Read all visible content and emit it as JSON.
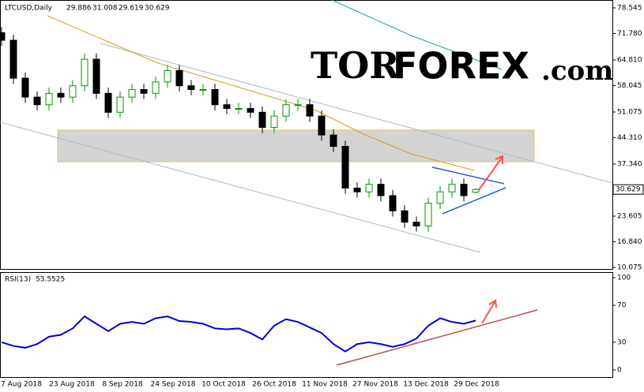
{
  "chart_data": [
    {
      "type": "candlestick",
      "symbol": "LTCUSD,Daily",
      "logo": {
        "left": "TOR",
        "middle": "FOREX",
        "right": ".com"
      },
      "up_color": "#009900",
      "down_color": "#000000",
      "open": [
        72,
        70,
        60,
        55,
        53,
        56,
        55,
        58,
        65,
        56,
        51,
        55,
        57,
        56,
        59,
        62,
        58,
        57,
        57,
        53,
        52,
        52,
        51,
        47,
        50,
        53,
        53,
        50,
        45,
        42,
        31,
        30,
        32,
        29,
        25,
        22,
        21,
        27,
        30,
        32,
        29.886
      ],
      "high": [
        73.5,
        71.5,
        61.5,
        56.5,
        57.5,
        57.5,
        59.5,
        66.5,
        66.5,
        57.5,
        56.5,
        58.5,
        58.5,
        60.5,
        63.5,
        63.5,
        59.5,
        58.5,
        58.5,
        54.5,
        53.5,
        53.5,
        52.5,
        51.5,
        54.5,
        54.5,
        54.5,
        51.5,
        46.5,
        43.5,
        32.5,
        33.5,
        33.5,
        30.5,
        26.5,
        23.5,
        28.5,
        31.5,
        33.5,
        33.5,
        31.008
      ],
      "low": [
        68.5,
        58.5,
        53.5,
        51.5,
        51.5,
        53.5,
        53.5,
        56.5,
        54.5,
        49.5,
        49.5,
        53.5,
        54.5,
        54.5,
        57.5,
        56.5,
        55.5,
        55.5,
        51.5,
        50.5,
        50.5,
        49.5,
        45.5,
        45.5,
        48.5,
        51.5,
        48.5,
        43.5,
        40.5,
        29.5,
        28.5,
        28.5,
        27.5,
        23.5,
        20.5,
        19.5,
        19.5,
        25.5,
        28.5,
        27.5,
        29.619
      ],
      "close": [
        70,
        60,
        55,
        53,
        56,
        55,
        58,
        65,
        56,
        51,
        55,
        57,
        56,
        59,
        62,
        58,
        57,
        57,
        53,
        52,
        52,
        51,
        47,
        50,
        53,
        53,
        50,
        45,
        42,
        31,
        30,
        32,
        29,
        25,
        22,
        21,
        27,
        30,
        32,
        29,
        30.629
      ],
      "ylim": [
        9.66,
        80.0
      ],
      "yticks": [
        78.545,
        {
          "value": 71.78,
          "label": "71.780"
        },
        {
          "value": 64.81,
          "label": "64.810"
        },
        58.045,
        51.075,
        {
          "value": 44.31,
          "label": "44.310"
        },
        {
          "value": 37.34,
          "label": "37.340"
        },
        23.605,
        {
          "value": 16.84,
          "label": "16.840"
        },
        10.075
      ],
      "xticks": [
        "7 Aug 2018",
        "23 Aug 2018",
        "8 Sep 2018",
        "24 Sep 2018",
        "10 Oct 2018",
        "26 Oct 2018",
        "11 Nov 2018",
        "27 Nov 2018",
        "13 Dec 2018",
        "29 Dec 2018"
      ]
    },
    {
      "type": "line",
      "name": "RSI(13)",
      "color": "#0000dd",
      "values": [
        30,
        26,
        24,
        28,
        36,
        38,
        45,
        58,
        50,
        42,
        50,
        52,
        50,
        56,
        58,
        53,
        52,
        50,
        45,
        44,
        45,
        40,
        33,
        48,
        55,
        52,
        46,
        40,
        28,
        20,
        28,
        30,
        28,
        25,
        28,
        34,
        48,
        56,
        52,
        50,
        53.5525
      ],
      "ylim": [
        -7.7,
        106
      ],
      "yticks": [
        100,
        70,
        30,
        0
      ]
    }
  ]
}
